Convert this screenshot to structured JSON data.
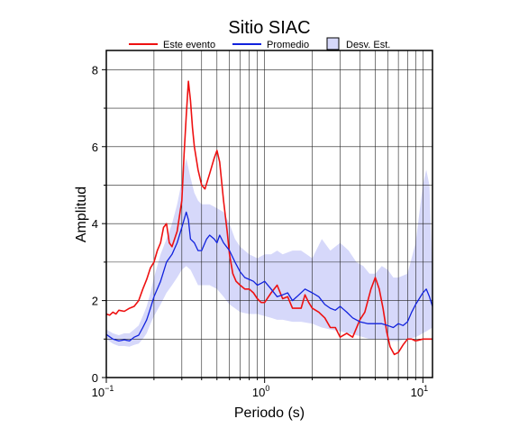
{
  "chart_data": {
    "type": "line",
    "title": "Sitio SIAC",
    "xlabel": "Periodo (s)",
    "ylabel": "Amplitud",
    "xscale": "log",
    "xlim": [
      0.1,
      11.5
    ],
    "ylim": [
      0,
      8.5
    ],
    "x_ticks": [
      {
        "value": 0.1,
        "base": "10",
        "exp": "−1"
      },
      {
        "value": 1,
        "base": "10",
        "exp": "0"
      },
      {
        "value": 10,
        "base": "10",
        "exp": "1"
      }
    ],
    "y_ticks": [
      0,
      2,
      4,
      6,
      8
    ],
    "grid": true,
    "legend_position": "top",
    "legend": {
      "event": "Este evento",
      "mean": "Promedio",
      "band": "Desv. Est."
    },
    "colors": {
      "event": "#ee1111",
      "mean": "#1122dd",
      "band": "#d6d8fa",
      "band_legend_edge": "#000000"
    },
    "series": [
      {
        "name": "Este evento",
        "x": [
          0.1,
          0.105,
          0.11,
          0.115,
          0.12,
          0.13,
          0.14,
          0.15,
          0.16,
          0.17,
          0.18,
          0.19,
          0.2,
          0.21,
          0.22,
          0.23,
          0.24,
          0.25,
          0.26,
          0.28,
          0.3,
          0.31,
          0.32,
          0.33,
          0.34,
          0.35,
          0.36,
          0.38,
          0.4,
          0.42,
          0.45,
          0.48,
          0.5,
          0.52,
          0.55,
          0.58,
          0.6,
          0.63,
          0.66,
          0.7,
          0.75,
          0.8,
          0.85,
          0.9,
          0.95,
          1.0,
          1.1,
          1.2,
          1.3,
          1.4,
          1.5,
          1.6,
          1.7,
          1.8,
          1.9,
          2.0,
          2.2,
          2.4,
          2.6,
          2.8,
          3.0,
          3.3,
          3.6,
          4.0,
          4.3,
          4.7,
          5.0,
          5.3,
          5.6,
          5.9,
          6.2,
          6.6,
          7.0,
          7.5,
          8.0,
          8.5,
          9.0,
          10.0,
          11.0,
          11.5
        ],
        "y": [
          1.65,
          1.62,
          1.7,
          1.65,
          1.75,
          1.72,
          1.8,
          1.85,
          2.0,
          2.3,
          2.55,
          2.85,
          3.0,
          3.3,
          3.5,
          3.9,
          4.0,
          3.5,
          3.4,
          3.8,
          4.6,
          5.8,
          6.8,
          7.7,
          7.2,
          6.5,
          6.0,
          5.4,
          5.0,
          4.9,
          5.3,
          5.7,
          5.9,
          5.6,
          4.6,
          3.8,
          3.2,
          2.7,
          2.5,
          2.4,
          2.3,
          2.3,
          2.2,
          2.05,
          1.95,
          1.95,
          2.2,
          2.4,
          2.05,
          2.1,
          1.8,
          1.8,
          1.8,
          2.15,
          1.95,
          1.8,
          1.7,
          1.55,
          1.3,
          1.3,
          1.05,
          1.15,
          1.05,
          1.5,
          1.7,
          2.3,
          2.6,
          2.3,
          1.8,
          1.2,
          0.8,
          0.6,
          0.65,
          0.85,
          1.0,
          1.0,
          0.95,
          1.0,
          1.0,
          1.0
        ]
      },
      {
        "name": "Promedio",
        "x": [
          0.1,
          0.11,
          0.12,
          0.13,
          0.14,
          0.15,
          0.16,
          0.17,
          0.18,
          0.19,
          0.2,
          0.22,
          0.24,
          0.26,
          0.28,
          0.3,
          0.32,
          0.33,
          0.34,
          0.36,
          0.38,
          0.4,
          0.43,
          0.45,
          0.48,
          0.5,
          0.52,
          0.55,
          0.6,
          0.65,
          0.7,
          0.75,
          0.8,
          0.85,
          0.9,
          0.95,
          1.0,
          1.1,
          1.2,
          1.3,
          1.4,
          1.5,
          1.6,
          1.8,
          2.0,
          2.2,
          2.4,
          2.6,
          2.8,
          3.0,
          3.3,
          3.6,
          4.0,
          4.5,
          5.0,
          5.5,
          6.0,
          6.5,
          7.0,
          7.5,
          8.0,
          8.5,
          9.0,
          10.0,
          10.5,
          11.0,
          11.5
        ],
        "y": [
          1.12,
          1.0,
          0.95,
          0.98,
          0.95,
          1.05,
          1.1,
          1.3,
          1.5,
          1.8,
          2.1,
          2.5,
          3.0,
          3.2,
          3.5,
          3.9,
          4.3,
          4.1,
          3.6,
          3.5,
          3.3,
          3.3,
          3.6,
          3.7,
          3.6,
          3.5,
          3.7,
          3.5,
          3.3,
          3.0,
          2.75,
          2.6,
          2.55,
          2.5,
          2.4,
          2.45,
          2.5,
          2.3,
          2.1,
          2.15,
          2.2,
          2.0,
          2.1,
          2.3,
          2.2,
          2.1,
          1.9,
          1.8,
          1.75,
          1.85,
          1.7,
          1.55,
          1.45,
          1.4,
          1.4,
          1.4,
          1.35,
          1.3,
          1.4,
          1.35,
          1.45,
          1.7,
          1.9,
          2.2,
          2.3,
          2.1,
          1.85
        ]
      }
    ],
    "band": {
      "name": "Desv. Est.",
      "x": [
        0.1,
        0.11,
        0.12,
        0.13,
        0.14,
        0.15,
        0.16,
        0.17,
        0.18,
        0.19,
        0.2,
        0.22,
        0.24,
        0.26,
        0.28,
        0.3,
        0.32,
        0.34,
        0.36,
        0.38,
        0.4,
        0.45,
        0.5,
        0.55,
        0.6,
        0.65,
        0.7,
        0.8,
        0.9,
        1.0,
        1.1,
        1.2,
        1.3,
        1.5,
        1.7,
        2.0,
        2.3,
        2.6,
        3.0,
        3.4,
        3.8,
        4.2,
        4.6,
        5.0,
        5.5,
        6.0,
        6.5,
        7.0,
        8.0,
        9.0,
        10.0,
        10.5,
        11.0,
        11.5
      ],
      "upper": [
        1.25,
        1.15,
        1.1,
        1.15,
        1.15,
        1.25,
        1.35,
        1.6,
        1.85,
        2.2,
        2.6,
        3.2,
        3.6,
        4.0,
        4.5,
        5.1,
        5.7,
        5.2,
        4.8,
        4.6,
        4.5,
        4.5,
        4.4,
        4.3,
        4.0,
        3.6,
        3.4,
        3.2,
        3.1,
        3.2,
        3.2,
        3.3,
        3.2,
        3.3,
        3.3,
        3.1,
        3.6,
        3.3,
        3.5,
        3.3,
        3.0,
        2.9,
        2.7,
        2.7,
        2.9,
        2.8,
        2.6,
        2.6,
        2.7,
        3.5,
        5.0,
        5.4,
        5.0,
        2.6
      ],
      "lower": [
        1.0,
        0.88,
        0.82,
        0.82,
        0.8,
        0.85,
        0.88,
        1.0,
        1.15,
        1.4,
        1.6,
        1.9,
        2.2,
        2.4,
        2.6,
        2.8,
        2.9,
        2.8,
        2.6,
        2.4,
        2.4,
        2.4,
        2.3,
        2.1,
        1.9,
        1.8,
        1.7,
        1.65,
        1.65,
        1.6,
        1.55,
        1.5,
        1.5,
        1.45,
        1.45,
        1.4,
        1.3,
        1.25,
        1.2,
        1.15,
        1.1,
        1.05,
        1.0,
        1.0,
        1.0,
        0.95,
        0.95,
        0.95,
        1.0,
        1.05,
        1.15,
        1.2,
        1.25,
        1.3
      ]
    }
  }
}
